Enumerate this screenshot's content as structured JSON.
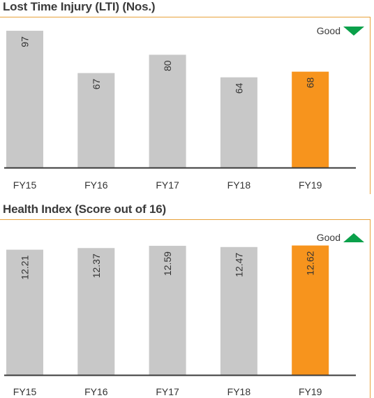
{
  "colors": {
    "bar": "#c8c8c8",
    "highlight": "#f7941d",
    "good": "#0aa04a",
    "rule": "#e8a13a",
    "axis": "#3a3a3a"
  },
  "chart_data": [
    {
      "type": "bar",
      "title": "Lost Time Injury (LTI) (Nos.)",
      "categories": [
        "FY15",
        "FY16",
        "FY17",
        "FY18",
        "FY19"
      ],
      "values": [
        97,
        67,
        80,
        64,
        68
      ],
      "value_labels": [
        "97",
        "67",
        "80",
        "64",
        "68"
      ],
      "highlight_index": 4,
      "ylim": [
        0,
        100
      ],
      "legend": {
        "label": "Good",
        "direction": "down"
      }
    },
    {
      "type": "bar",
      "title": "Health Index (Score out of 16)",
      "categories": [
        "FY15",
        "FY16",
        "FY17",
        "FY18",
        "FY19"
      ],
      "values": [
        12.21,
        12.37,
        12.59,
        12.47,
        12.62
      ],
      "value_labels": [
        "12.21",
        "12.37",
        "12.59",
        "12.47",
        "12.62"
      ],
      "highlight_index": 4,
      "ylim": [
        0,
        13.0
      ],
      "legend": {
        "label": "Good",
        "direction": "up"
      }
    }
  ]
}
